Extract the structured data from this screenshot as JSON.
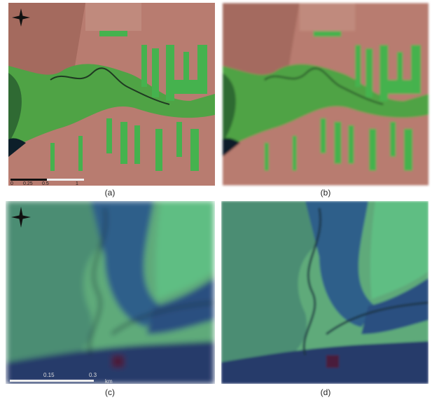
{
  "panels": [
    {
      "label": "(a)",
      "scale_labels": [
        "0",
        "0.25",
        "0.5",
        "1"
      ]
    },
    {
      "label": "(b)"
    },
    {
      "label": "(c)",
      "scale_labels": [
        "0.15",
        "0.3"
      ],
      "scale_unit": "km"
    },
    {
      "label": "(d)"
    }
  ]
}
